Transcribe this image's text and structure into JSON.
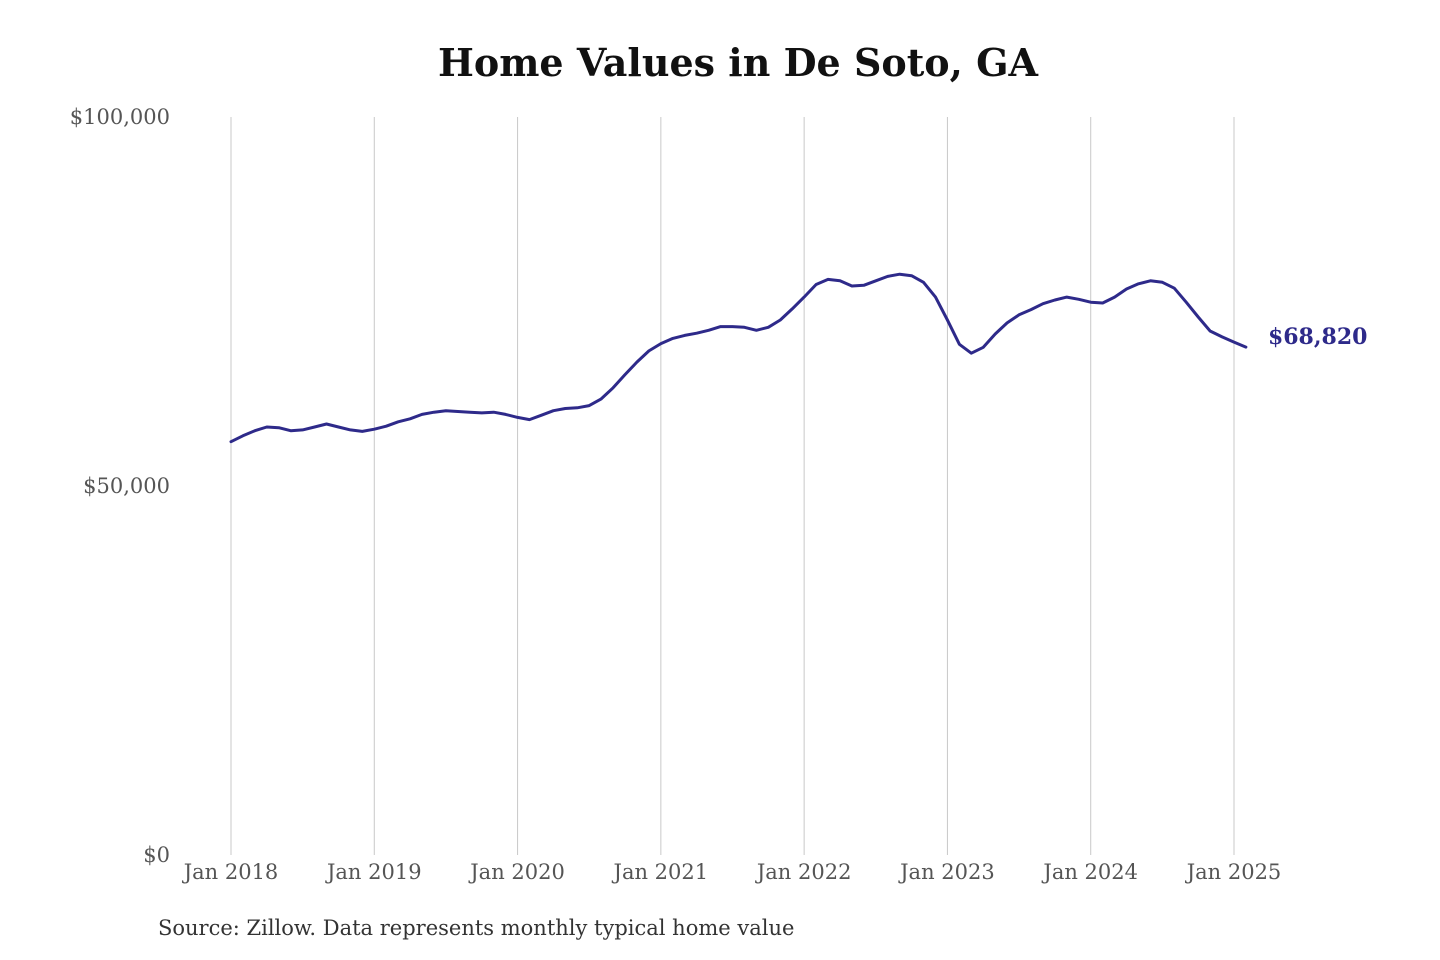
{
  "chart_data": {
    "type": "line",
    "title": "Home Values in De Soto, GA",
    "xlabel": "",
    "ylabel": "",
    "ylim": [
      0,
      100000
    ],
    "yticks": [
      {
        "value": 0,
        "label": "$0"
      },
      {
        "value": 50000,
        "label": "$50,000"
      },
      {
        "value": 100000,
        "label": "$100,000"
      }
    ],
    "xticks": [
      {
        "date": "2018-01",
        "label": "Jan 2018"
      },
      {
        "date": "2019-01",
        "label": "Jan 2019"
      },
      {
        "date": "2020-01",
        "label": "Jan 2020"
      },
      {
        "date": "2021-01",
        "label": "Jan 2021"
      },
      {
        "date": "2022-01",
        "label": "Jan 2022"
      },
      {
        "date": "2023-01",
        "label": "Jan 2023"
      },
      {
        "date": "2024-01",
        "label": "Jan 2024"
      },
      {
        "date": "2025-01",
        "label": "Jan 2025"
      }
    ],
    "grid": "vertical",
    "line_color": "#2e2a8a",
    "end_label": "$68,820",
    "series": [
      {
        "points": [
          [
            "2018-01",
            56000
          ],
          [
            "2018-02",
            56800
          ],
          [
            "2018-03",
            57500
          ],
          [
            "2018-04",
            58000
          ],
          [
            "2018-05",
            57900
          ],
          [
            "2018-06",
            57500
          ],
          [
            "2018-07",
            57600
          ],
          [
            "2018-08",
            58000
          ],
          [
            "2018-09",
            58400
          ],
          [
            "2018-10",
            58000
          ],
          [
            "2018-11",
            57600
          ],
          [
            "2018-12",
            57400
          ],
          [
            "2019-01",
            57700
          ],
          [
            "2019-02",
            58100
          ],
          [
            "2019-03",
            58700
          ],
          [
            "2019-04",
            59100
          ],
          [
            "2019-05",
            59700
          ],
          [
            "2019-06",
            60000
          ],
          [
            "2019-07",
            60200
          ],
          [
            "2019-08",
            60100
          ],
          [
            "2019-09",
            60000
          ],
          [
            "2019-10",
            59900
          ],
          [
            "2019-11",
            60000
          ],
          [
            "2019-12",
            59700
          ],
          [
            "2020-01",
            59300
          ],
          [
            "2020-02",
            59000
          ],
          [
            "2020-03",
            59600
          ],
          [
            "2020-04",
            60200
          ],
          [
            "2020-05",
            60500
          ],
          [
            "2020-06",
            60600
          ],
          [
            "2020-07",
            60900
          ],
          [
            "2020-08",
            61800
          ],
          [
            "2020-09",
            63300
          ],
          [
            "2020-10",
            65100
          ],
          [
            "2020-11",
            66800
          ],
          [
            "2020-12",
            68300
          ],
          [
            "2021-01",
            69300
          ],
          [
            "2021-02",
            70000
          ],
          [
            "2021-03",
            70400
          ],
          [
            "2021-04",
            70700
          ],
          [
            "2021-05",
            71100
          ],
          [
            "2021-06",
            71600
          ],
          [
            "2021-07",
            71600
          ],
          [
            "2021-08",
            71500
          ],
          [
            "2021-09",
            71100
          ],
          [
            "2021-10",
            71500
          ],
          [
            "2021-11",
            72500
          ],
          [
            "2021-12",
            74000
          ],
          [
            "2022-01",
            75600
          ],
          [
            "2022-02",
            77300
          ],
          [
            "2022-03",
            78000
          ],
          [
            "2022-04",
            77800
          ],
          [
            "2022-05",
            77100
          ],
          [
            "2022-06",
            77200
          ],
          [
            "2022-07",
            77800
          ],
          [
            "2022-08",
            78400
          ],
          [
            "2022-09",
            78700
          ],
          [
            "2022-10",
            78500
          ],
          [
            "2022-11",
            77600
          ],
          [
            "2022-12",
            75600
          ],
          [
            "2023-01",
            72500
          ],
          [
            "2023-02",
            69200
          ],
          [
            "2023-03",
            68000
          ],
          [
            "2023-04",
            68800
          ],
          [
            "2023-05",
            70600
          ],
          [
            "2023-06",
            72100
          ],
          [
            "2023-07",
            73200
          ],
          [
            "2023-08",
            73900
          ],
          [
            "2023-09",
            74700
          ],
          [
            "2023-10",
            75200
          ],
          [
            "2023-11",
            75600
          ],
          [
            "2023-12",
            75300
          ],
          [
            "2024-01",
            74900
          ],
          [
            "2024-02",
            74800
          ],
          [
            "2024-03",
            75600
          ],
          [
            "2024-04",
            76700
          ],
          [
            "2024-05",
            77400
          ],
          [
            "2024-06",
            77800
          ],
          [
            "2024-07",
            77600
          ],
          [
            "2024-08",
            76800
          ],
          [
            "2024-09",
            74900
          ],
          [
            "2024-10",
            72900
          ],
          [
            "2024-11",
            71000
          ],
          [
            "2024-12",
            70200
          ],
          [
            "2025-01",
            69500
          ],
          [
            "2025-02",
            68820
          ]
        ]
      }
    ]
  },
  "source": "Source: Zillow. Data represents monthly typical home value"
}
